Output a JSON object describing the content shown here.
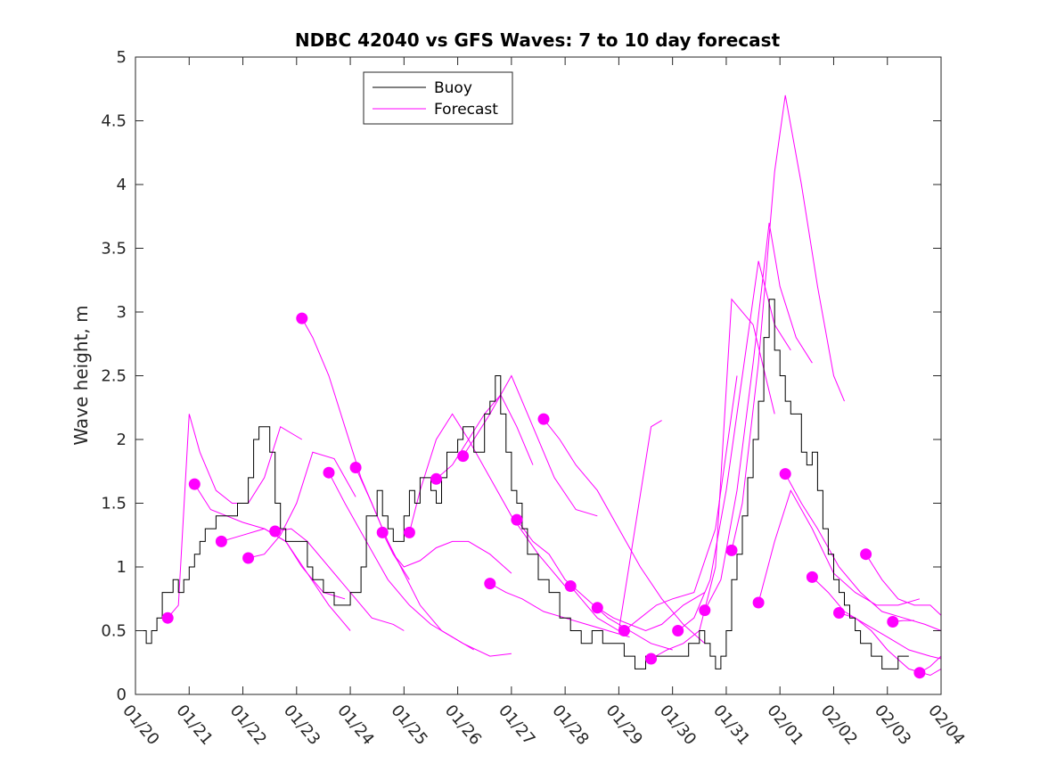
{
  "chart_data": {
    "type": "line",
    "title": "NDBC 42040 vs GFS Waves: 7 to 10 day forecast",
    "xlabel": "",
    "ylabel": "Wave height, m",
    "xlim": [
      0,
      15
    ],
    "ylim": [
      0,
      5
    ],
    "x_tick_values": [
      0,
      1,
      2,
      3,
      4,
      5,
      6,
      7,
      8,
      9,
      10,
      11,
      12,
      13,
      14,
      15
    ],
    "x_tick_labels": [
      "01/20",
      "01/21",
      "01/22",
      "01/23",
      "01/24",
      "01/25",
      "01/26",
      "01/27",
      "01/28",
      "01/29",
      "01/30",
      "01/31",
      "02/01",
      "02/02",
      "02/03",
      "02/04"
    ],
    "y_tick_values": [
      0,
      0.5,
      1,
      1.5,
      2,
      2.5,
      3,
      3.5,
      4,
      4.5,
      5
    ],
    "y_tick_labels": [
      "0",
      "0.5",
      "1",
      "1.5",
      "2",
      "2.5",
      "3",
      "3.5",
      "4",
      "4.5",
      "5"
    ],
    "legend": {
      "position": "top-left",
      "entries": [
        "Buoy",
        "Forecast"
      ]
    },
    "colors": {
      "buoy": "#000000",
      "forecast": "#ff00ff"
    },
    "buoy": {
      "name": "Buoy",
      "x": [
        0,
        0.1,
        0.2,
        0.3,
        0.4,
        0.5,
        0.6,
        0.7,
        0.8,
        0.9,
        1.0,
        1.1,
        1.2,
        1.3,
        1.5,
        1.7,
        1.9,
        2.1,
        2.2,
        2.3,
        2.5,
        2.6,
        2.7,
        2.8,
        3.0,
        3.2,
        3.3,
        3.5,
        3.7,
        3.9,
        4.0,
        4.1,
        4.2,
        4.3,
        4.5,
        4.6,
        4.7,
        4.8,
        5.0,
        5.1,
        5.2,
        5.3,
        5.5,
        5.6,
        5.7,
        5.8,
        6.0,
        6.1,
        6.2,
        6.3,
        6.5,
        6.6,
        6.7,
        6.8,
        6.9,
        7.0,
        7.1,
        7.2,
        7.3,
        7.5,
        7.7,
        7.9,
        8.1,
        8.3,
        8.5,
        8.7,
        8.9,
        9.1,
        9.3,
        9.5,
        9.7,
        9.9,
        10.1,
        10.3,
        10.5,
        10.6,
        10.7,
        10.8,
        10.9,
        11.0,
        11.1,
        11.2,
        11.3,
        11.4,
        11.5,
        11.6,
        11.7,
        11.8,
        11.9,
        12.0,
        12.1,
        12.2,
        12.3,
        12.4,
        12.5,
        12.6,
        12.7,
        12.8,
        12.9,
        13.0,
        13.1,
        13.2,
        13.3,
        13.4,
        13.5,
        13.6,
        13.7,
        13.8,
        13.9,
        14.0,
        14.1,
        14.2,
        14.3,
        14.4
      ],
      "values": [
        0.5,
        0.5,
        0.4,
        0.5,
        0.6,
        0.8,
        0.8,
        0.9,
        0.8,
        0.9,
        1.0,
        1.1,
        1.2,
        1.3,
        1.4,
        1.4,
        1.5,
        1.7,
        2.0,
        2.1,
        1.9,
        1.5,
        1.3,
        1.2,
        1.2,
        1.0,
        0.9,
        0.8,
        0.7,
        0.7,
        0.8,
        0.8,
        1.0,
        1.4,
        1.6,
        1.4,
        1.3,
        1.2,
        1.4,
        1.6,
        1.5,
        1.7,
        1.6,
        1.5,
        1.7,
        1.9,
        2.0,
        2.1,
        2.1,
        1.9,
        2.2,
        2.3,
        2.5,
        2.2,
        1.9,
        1.6,
        1.5,
        1.3,
        1.1,
        0.9,
        0.8,
        0.6,
        0.5,
        0.4,
        0.5,
        0.4,
        0.4,
        0.3,
        0.2,
        0.3,
        0.3,
        0.3,
        0.3,
        0.4,
        0.5,
        0.4,
        0.3,
        0.2,
        0.3,
        0.5,
        0.9,
        1.1,
        1.4,
        1.7,
        2.0,
        2.3,
        2.8,
        3.1,
        2.7,
        2.5,
        2.3,
        2.2,
        2.2,
        1.9,
        1.8,
        1.9,
        1.6,
        1.3,
        1.1,
        0.9,
        0.8,
        0.7,
        0.6,
        0.5,
        0.4,
        0.4,
        0.3,
        0.3,
        0.2,
        0.2,
        0.2,
        0.3,
        0.3,
        0.3
      ]
    },
    "forecast_series": [
      {
        "x": [
          0.6,
          0.8,
          1.0,
          1.2,
          1.5,
          1.8,
          2.1,
          2.4,
          2.7,
          3.1
        ],
        "values": [
          0.6,
          0.7,
          2.2,
          1.9,
          1.6,
          1.5,
          1.5,
          1.7,
          2.1,
          2.0
        ]
      },
      {
        "x": [
          1.1,
          1.4,
          1.7,
          2.0,
          2.4,
          2.8,
          3.1,
          3.5,
          3.9
        ],
        "values": [
          1.65,
          1.45,
          1.4,
          1.35,
          1.3,
          1.2,
          1.0,
          0.8,
          0.75
        ]
      },
      {
        "x": [
          1.6,
          2.0,
          2.4,
          2.8,
          3.2,
          3.6,
          4.0
        ],
        "values": [
          1.2,
          1.25,
          1.3,
          1.2,
          0.95,
          0.7,
          0.5
        ]
      },
      {
        "x": [
          2.1,
          2.4,
          2.7,
          3.0,
          3.3,
          3.7,
          4.1
        ],
        "values": [
          1.07,
          1.1,
          1.25,
          1.5,
          1.9,
          1.85,
          1.55
        ]
      },
      {
        "x": [
          2.6,
          2.9,
          3.2,
          3.6,
          4.0,
          4.4,
          4.8,
          5.0
        ],
        "values": [
          1.28,
          1.3,
          1.2,
          1.0,
          0.8,
          0.6,
          0.55,
          0.5
        ]
      },
      {
        "x": [
          3.1,
          3.3,
          3.6,
          3.9,
          4.2,
          4.5,
          4.8,
          5.1
        ],
        "values": [
          2.95,
          2.8,
          2.5,
          2.1,
          1.7,
          1.4,
          1.1,
          0.9
        ]
      },
      {
        "x": [
          3.6,
          3.9,
          4.3,
          4.7,
          5.1,
          5.5,
          5.9,
          6.3
        ],
        "values": [
          1.74,
          1.5,
          1.2,
          0.9,
          0.7,
          0.55,
          0.45,
          0.35
        ]
      },
      {
        "x": [
          4.1,
          4.4,
          4.7,
          5.0,
          5.3,
          5.7,
          6.1,
          6.6,
          7.0
        ],
        "values": [
          1.78,
          1.5,
          1.2,
          0.95,
          0.7,
          0.5,
          0.4,
          0.3,
          0.32
        ]
      },
      {
        "x": [
          4.6,
          4.8,
          5.0,
          5.3,
          5.6,
          5.9,
          6.2,
          6.6,
          7.0
        ],
        "values": [
          1.27,
          1.1,
          1.0,
          1.05,
          1.15,
          1.2,
          1.2,
          1.1,
          0.95
        ]
      },
      {
        "x": [
          5.1,
          5.3,
          5.6,
          5.9,
          6.2,
          6.6,
          7.0,
          7.5,
          8.0
        ],
        "values": [
          1.27,
          1.6,
          2.0,
          2.2,
          2.0,
          1.7,
          1.4,
          1.1,
          0.85
        ]
      },
      {
        "x": [
          5.6,
          5.9,
          6.2,
          6.5,
          6.8,
          7.1,
          7.4
        ],
        "values": [
          1.69,
          1.8,
          2.0,
          2.2,
          2.35,
          2.1,
          1.8
        ]
      },
      {
        "x": [
          6.1,
          6.3,
          6.6,
          7.0,
          7.4,
          7.8,
          8.2,
          8.6
        ],
        "values": [
          1.87,
          2.0,
          2.2,
          2.5,
          2.1,
          1.7,
          1.45,
          1.4
        ]
      },
      {
        "x": [
          6.6,
          6.9,
          7.2,
          7.6,
          8.0,
          8.4,
          8.8,
          9.2
        ],
        "values": [
          0.87,
          0.8,
          0.75,
          0.65,
          0.6,
          0.55,
          0.5,
          0.45
        ]
      },
      {
        "x": [
          7.1,
          7.4,
          7.7,
          8.0,
          8.4,
          8.8,
          9.2,
          9.6,
          10.0
        ],
        "values": [
          1.37,
          1.2,
          1.1,
          0.9,
          0.75,
          0.6,
          0.5,
          0.4,
          0.35
        ]
      },
      {
        "x": [
          7.6,
          7.9,
          8.2,
          8.6,
          9.0,
          9.4,
          9.8,
          10.2,
          10.6
        ],
        "values": [
          2.16,
          2.0,
          1.8,
          1.6,
          1.3,
          1.0,
          0.75,
          0.55,
          0.4
        ]
      },
      {
        "x": [
          8.1,
          8.3,
          8.6,
          9.0,
          9.3,
          9.6,
          9.8
        ],
        "values": [
          0.85,
          0.75,
          0.6,
          0.5,
          1.3,
          2.1,
          2.15
        ]
      },
      {
        "x": [
          8.6,
          8.9,
          9.2,
          9.5,
          9.8,
          10.2,
          10.6
        ],
        "values": [
          0.68,
          0.6,
          0.55,
          0.5,
          0.55,
          0.7,
          0.8
        ]
      },
      {
        "x": [
          9.1,
          9.4,
          9.7,
          10.0,
          10.4,
          10.8,
          11.2
        ],
        "values": [
          0.5,
          0.6,
          0.7,
          0.75,
          0.8,
          1.3,
          2.5
        ]
      },
      {
        "x": [
          9.6,
          9.9,
          10.2,
          10.5,
          10.8,
          11.1,
          11.5,
          11.9
        ],
        "values": [
          0.28,
          0.35,
          0.4,
          0.5,
          1.0,
          3.1,
          2.9,
          2.2
        ]
      },
      {
        "x": [
          10.1,
          10.4,
          10.7,
          11.0,
          11.3,
          11.6,
          11.9,
          12.2
        ],
        "values": [
          0.5,
          0.6,
          0.9,
          1.6,
          2.5,
          3.4,
          2.9,
          2.7
        ]
      },
      {
        "x": [
          10.6,
          10.9,
          11.2,
          11.5,
          11.8,
          12.0,
          12.3,
          12.6
        ],
        "values": [
          0.66,
          0.9,
          1.6,
          2.6,
          3.7,
          3.2,
          2.8,
          2.6
        ]
      },
      {
        "x": [
          11.1,
          11.3,
          11.6,
          11.9,
          12.1,
          12.4,
          12.7,
          13.0,
          13.2
        ],
        "values": [
          1.13,
          1.5,
          2.6,
          4.1,
          4.7,
          4.0,
          3.2,
          2.5,
          2.3
        ]
      },
      {
        "x": [
          11.6,
          11.9,
          12.2,
          12.6,
          13.0,
          13.4,
          13.8,
          14.2,
          14.6
        ],
        "values": [
          0.72,
          1.2,
          1.6,
          1.3,
          0.95,
          0.8,
          0.7,
          0.7,
          0.75
        ]
      },
      {
        "x": [
          12.1,
          12.4,
          12.7,
          13.1,
          13.5,
          13.9,
          14.3,
          14.7,
          15.0
        ],
        "values": [
          1.73,
          1.5,
          1.3,
          1.0,
          0.8,
          0.65,
          0.6,
          0.55,
          0.5
        ]
      },
      {
        "x": [
          12.6,
          12.9,
          13.2,
          13.6,
          14.0,
          14.4,
          14.8,
          15.0
        ],
        "values": [
          0.92,
          0.8,
          0.65,
          0.55,
          0.45,
          0.35,
          0.3,
          0.28
        ]
      },
      {
        "x": [
          13.1,
          13.4,
          13.7,
          14.0,
          14.4,
          14.8,
          15.0
        ],
        "values": [
          0.64,
          0.6,
          0.5,
          0.35,
          0.2,
          0.15,
          0.2
        ]
      },
      {
        "x": [
          13.6,
          13.9,
          14.2,
          14.5,
          14.8,
          15.0
        ],
        "values": [
          1.1,
          0.9,
          0.75,
          0.7,
          0.7,
          0.62
        ]
      },
      {
        "x": [
          14.1,
          14.3,
          14.5
        ],
        "values": [
          0.57,
          0.58,
          0.58
        ]
      },
      {
        "x": [
          14.6,
          14.8,
          15.0
        ],
        "values": [
          0.17,
          0.22,
          0.3
        ]
      }
    ]
  }
}
